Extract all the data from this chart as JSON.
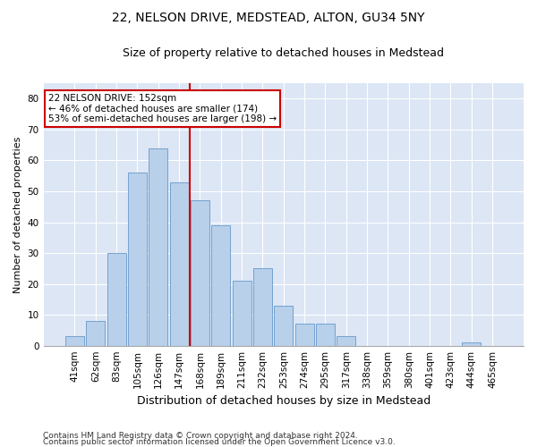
{
  "title1": "22, NELSON DRIVE, MEDSTEAD, ALTON, GU34 5NY",
  "title2": "Size of property relative to detached houses in Medstead",
  "xlabel": "Distribution of detached houses by size in Medstead",
  "ylabel": "Number of detached properties",
  "bar_labels": [
    "41sqm",
    "62sqm",
    "83sqm",
    "105sqm",
    "126sqm",
    "147sqm",
    "168sqm",
    "189sqm",
    "211sqm",
    "232sqm",
    "253sqm",
    "274sqm",
    "295sqm",
    "317sqm",
    "338sqm",
    "359sqm",
    "380sqm",
    "401sqm",
    "423sqm",
    "444sqm",
    "465sqm"
  ],
  "bar_values": [
    3,
    8,
    30,
    56,
    64,
    53,
    47,
    39,
    21,
    25,
    13,
    7,
    7,
    3,
    0,
    0,
    0,
    0,
    0,
    1,
    0
  ],
  "bar_color": "#b8d0ea",
  "bar_edge_color": "#6699cc",
  "vline_color": "#cc0000",
  "ylim": [
    0,
    85
  ],
  "yticks": [
    0,
    10,
    20,
    30,
    40,
    50,
    60,
    70,
    80
  ],
  "annotation_text": "22 NELSON DRIVE: 152sqm\n← 46% of detached houses are smaller (174)\n53% of semi-detached houses are larger (198) →",
  "annotation_box_facecolor": "#ffffff",
  "annotation_box_edgecolor": "#cc0000",
  "fig_facecolor": "#ffffff",
  "plot_facecolor": "#dce6f5",
  "grid_color": "#ffffff",
  "footer1": "Contains HM Land Registry data © Crown copyright and database right 2024.",
  "footer2": "Contains public sector information licensed under the Open Government Licence v3.0.",
  "title1_fontsize": 10,
  "title2_fontsize": 9,
  "ylabel_fontsize": 8,
  "xlabel_fontsize": 9,
  "tick_fontsize": 7.5,
  "annotation_fontsize": 7.5,
  "footer_fontsize": 6.5,
  "vline_index": 5
}
